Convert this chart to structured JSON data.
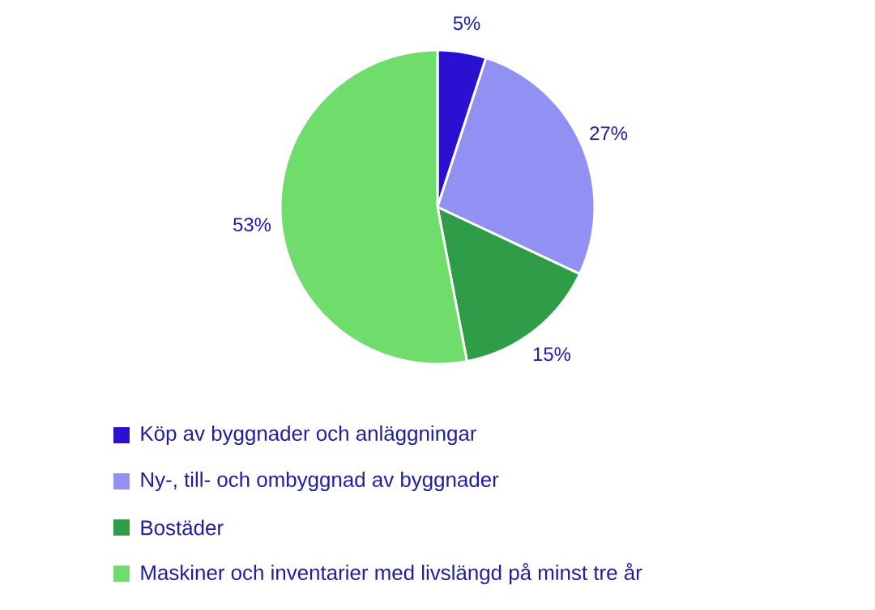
{
  "chart_data": {
    "type": "pie",
    "categories": [
      "Köp av byggnader och anläggningar",
      "Ny-, till- och ombyggnad av byggnader",
      "Bostäder",
      "Maskiner och inventarier med livslängd på minst tre år"
    ],
    "values": [
      5,
      27,
      15,
      53
    ],
    "colors": [
      "#2a10d0",
      "#9191f4",
      "#2f9c48",
      "#6edd6c"
    ],
    "value_labels": [
      "5%",
      "27%",
      "15%",
      "53%"
    ],
    "legend": "bottom"
  }
}
